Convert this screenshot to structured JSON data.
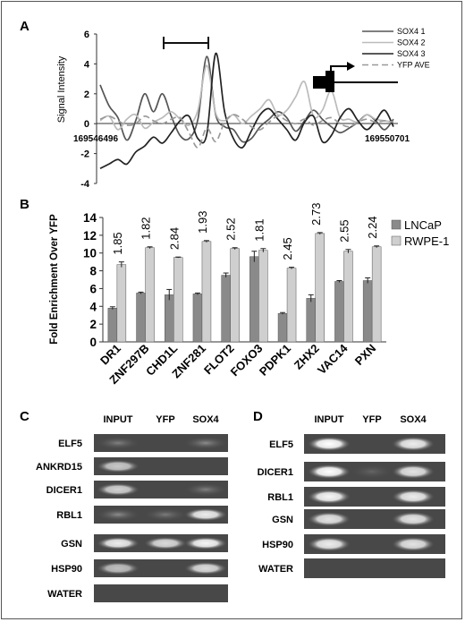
{
  "panel_a": {
    "label": "A",
    "chart_data": {
      "type": "line",
      "ylabel": "Signal Intensity",
      "x_start_label": "169546496",
      "x_end_label": "169550701",
      "ylim": [
        -4,
        6
      ],
      "yticks": [
        "6",
        "4",
        "2",
        "0",
        "-2",
        "-4"
      ],
      "series": [
        {
          "name": "SOX4 1",
          "color": "#555555",
          "dash": "",
          "values": [
            2.6,
            1.2,
            0.4,
            -1.1,
            0.2,
            2.0,
            0.8,
            2.0,
            0.5,
            -0.8,
            -1.0,
            0.3,
            4.5,
            0.6,
            -0.2,
            -0.4,
            -1.2,
            -1.0,
            -0.2,
            0.3,
            0.8,
            0.4,
            -0.5,
            0.2,
            0.9,
            0.3,
            -0.2,
            -0.6,
            -0.3,
            0.1,
            0.6,
            0.2,
            -0.4,
            0.3
          ]
        },
        {
          "name": "SOX4 2",
          "color": "#bbbbbb",
          "dash": "",
          "values": [
            0.2,
            0.5,
            -0.4,
            0.3,
            0.6,
            -0.3,
            0.1,
            0.4,
            0.8,
            0.3,
            -0.1,
            0.9,
            3.9,
            0.7,
            0.2,
            0.6,
            0.0,
            0.5,
            1.0,
            1.6,
            0.6,
            0.9,
            1.8,
            2.8,
            0.5,
            0.9,
            2.2,
            0.4,
            0.3,
            0.1,
            0.6,
            0.3,
            0.2,
            0.1
          ]
        },
        {
          "name": "SOX4 3",
          "color": "#222222",
          "dash": "",
          "values": [
            -3.0,
            -2.7,
            -2.4,
            -2.7,
            -1.9,
            -1.5,
            -0.9,
            -1.3,
            -0.6,
            0.2,
            0.5,
            -1.0,
            -0.7,
            4.7,
            0.8,
            -1.0,
            -1.6,
            -0.5,
            0.6,
            1.0,
            0.3,
            -0.4,
            -1.1,
            0.1,
            0.5,
            -1.2,
            -0.8,
            0.4,
            1.0,
            0.2,
            -0.4,
            0.2,
            0.9,
            -0.2
          ]
        },
        {
          "name": "YFP AVE",
          "color": "#999999",
          "dash": "7,4",
          "values": [
            0.3,
            0.5,
            0.2,
            -0.1,
            0.0,
            0.5,
            0.2,
            0.0,
            0.3,
            0.4,
            -0.6,
            -1.6,
            -0.3,
            -1.2,
            0.1,
            0.6,
            0.3,
            -0.2,
            -0.4,
            0.1,
            0.5,
            0.2,
            0.0,
            0.3,
            -0.1,
            0.2,
            0.4,
            0.0,
            -0.2,
            0.1,
            0.3,
            0.1,
            0.2,
            0.1
          ]
        }
      ]
    }
  },
  "panel_b": {
    "label": "B",
    "chart_data": {
      "type": "bar",
      "ylabel": "Fold Enrichment Over YFP",
      "ylim": [
        0,
        14
      ],
      "yticks": [
        "0",
        "2",
        "4",
        "6",
        "8",
        "10",
        "12",
        "14"
      ],
      "categories": [
        "DR1",
        "ZNF297B",
        "CHD1L",
        "ZNF281",
        "FLOT2",
        "FOXO3",
        "PDPK1",
        "ZHX2",
        "VAC14",
        "PXN"
      ],
      "ratios": [
        "1.85",
        "1.82",
        "2.84",
        "1.93",
        "2.52",
        "1.81",
        "2.45",
        "2.73",
        "2.55",
        "2.24"
      ],
      "series": [
        {
          "name": "LNCaP",
          "color": "#8a8a8a",
          "values": [
            3.8,
            5.5,
            5.3,
            5.4,
            7.5,
            9.6,
            3.2,
            4.9,
            6.8,
            6.9
          ],
          "errors": [
            0.15,
            0.1,
            0.6,
            0.1,
            0.25,
            0.6,
            0.1,
            0.4,
            0.1,
            0.3
          ]
        },
        {
          "name": "RWPE-1",
          "color": "#cfcfcf",
          "values": [
            8.7,
            10.6,
            9.5,
            11.3,
            10.5,
            10.3,
            8.3,
            12.2,
            10.2,
            10.7
          ],
          "errors": [
            0.3,
            0.1,
            0.05,
            0.1,
            0.1,
            0.2,
            0.1,
            0.1,
            0.2,
            0.1
          ]
        }
      ]
    }
  },
  "panel_c": {
    "label": "C",
    "columns": [
      "INPUT",
      "YFP",
      "SOX4"
    ],
    "rows": [
      "ELF5",
      "ANKRD15",
      "DICER1",
      "RBL1",
      "GSN",
      "HSP90",
      "WATER"
    ]
  },
  "panel_d": {
    "label": "D",
    "columns": [
      "INPUT",
      "YFP",
      "SOX4"
    ],
    "rows": [
      "ELF5",
      "DICER1",
      "RBL1",
      "GSN",
      "HSP90",
      "WATER"
    ]
  }
}
